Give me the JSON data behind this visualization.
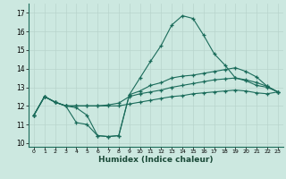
{
  "xlabel": "Humidex (Indice chaleur)",
  "x_ticks": [
    0,
    1,
    2,
    3,
    4,
    5,
    6,
    7,
    8,
    9,
    10,
    11,
    12,
    13,
    14,
    15,
    16,
    17,
    18,
    19,
    20,
    21,
    22,
    23
  ],
  "ylim": [
    9.8,
    17.5
  ],
  "xlim": [
    -0.5,
    23.5
  ],
  "y_ticks": [
    10,
    11,
    12,
    13,
    14,
    15,
    16,
    17
  ],
  "background_color": "#cce8e0",
  "grid_color": "#b8d4cc",
  "line_color": "#1a6b5a",
  "line_peak_x": [
    0,
    1,
    2,
    3,
    4,
    5,
    6,
    7,
    8,
    9,
    10,
    11,
    12,
    13,
    14,
    15,
    16,
    17,
    18,
    19,
    20,
    21,
    22,
    23
  ],
  "line_peak_y": [
    11.5,
    12.5,
    12.2,
    12.0,
    11.1,
    11.0,
    10.4,
    10.35,
    10.4,
    12.6,
    13.5,
    14.4,
    15.25,
    16.35,
    16.85,
    16.7,
    15.8,
    14.8,
    14.2,
    13.5,
    13.35,
    13.1,
    13.0,
    12.75
  ],
  "line_upper_x": [
    0,
    1,
    2,
    3,
    4,
    5,
    6,
    7,
    8,
    9,
    10,
    11,
    12,
    13,
    14,
    15,
    16,
    17,
    18,
    19,
    20,
    21,
    22,
    23
  ],
  "line_upper_y": [
    11.5,
    12.5,
    12.2,
    12.0,
    11.9,
    11.5,
    10.4,
    10.35,
    10.4,
    12.6,
    12.8,
    13.1,
    13.25,
    13.5,
    13.6,
    13.65,
    13.75,
    13.85,
    13.95,
    14.05,
    13.85,
    13.55,
    13.05,
    12.75
  ],
  "line_mid_x": [
    0,
    1,
    2,
    3,
    4,
    5,
    6,
    7,
    8,
    9,
    10,
    11,
    12,
    13,
    14,
    15,
    16,
    17,
    18,
    19,
    20,
    21,
    22,
    23
  ],
  "line_mid_y": [
    11.5,
    12.5,
    12.2,
    12.0,
    12.0,
    12.0,
    12.0,
    12.05,
    12.15,
    12.5,
    12.65,
    12.75,
    12.85,
    13.0,
    13.1,
    13.2,
    13.3,
    13.4,
    13.45,
    13.5,
    13.4,
    13.25,
    13.05,
    12.75
  ],
  "line_low_x": [
    0,
    1,
    2,
    3,
    4,
    5,
    6,
    7,
    8,
    9,
    10,
    11,
    12,
    13,
    14,
    15,
    16,
    17,
    18,
    19,
    20,
    21,
    22,
    23
  ],
  "line_low_y": [
    11.5,
    12.5,
    12.2,
    12.0,
    12.0,
    12.0,
    12.0,
    12.0,
    12.0,
    12.1,
    12.2,
    12.3,
    12.4,
    12.5,
    12.55,
    12.65,
    12.7,
    12.75,
    12.8,
    12.85,
    12.8,
    12.7,
    12.65,
    12.75
  ]
}
